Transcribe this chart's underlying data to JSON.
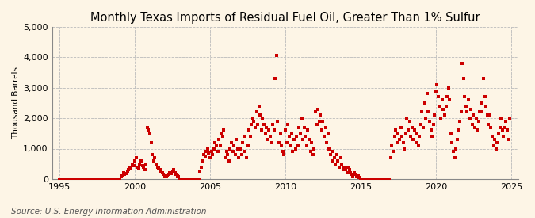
{
  "title": "Monthly Texas Imports of Residual Fuel Oil, Greater Than 1% Sulfur",
  "ylabel": "Thousand Barrels",
  "source": "Source: U.S. Energy Information Administration",
  "xlim": [
    1994.5,
    2025.5
  ],
  "ylim": [
    0,
    5000
  ],
  "yticks": [
    0,
    1000,
    2000,
    3000,
    4000,
    5000
  ],
  "xticks": [
    1995,
    2000,
    2005,
    2010,
    2015,
    2020,
    2025
  ],
  "marker_color": "#cc0000",
  "background_color": "#fdf5e6",
  "title_fontsize": 10.5,
  "label_fontsize": 7.5,
  "tick_fontsize": 8,
  "source_fontsize": 7.5,
  "data": {
    "1995-01": 5,
    "1995-02": 8,
    "1995-03": 4,
    "1995-04": 6,
    "1995-05": 5,
    "1995-06": 3,
    "1995-07": 4,
    "1995-08": 6,
    "1995-09": 5,
    "1995-10": 4,
    "1995-11": 5,
    "1995-12": 3,
    "1996-01": 5,
    "1996-02": 4,
    "1996-03": 6,
    "1996-04": 5,
    "1996-05": 4,
    "1996-06": 3,
    "1996-07": 5,
    "1996-08": 4,
    "1996-09": 6,
    "1996-10": 5,
    "1996-11": 4,
    "1996-12": 5,
    "1997-01": 4,
    "1997-02": 5,
    "1997-03": 6,
    "1997-04": 4,
    "1997-05": 5,
    "1997-06": 3,
    "1997-07": 4,
    "1997-08": 5,
    "1997-09": 4,
    "1997-10": 5,
    "1997-11": 4,
    "1997-12": 3,
    "1998-01": 5,
    "1998-02": 4,
    "1998-03": 5,
    "1998-04": 6,
    "1998-05": 4,
    "1998-06": 5,
    "1998-07": 3,
    "1998-08": 4,
    "1998-09": 5,
    "1998-10": 4,
    "1998-11": 5,
    "1998-12": 4,
    "1999-01": 5,
    "1999-02": 80,
    "1999-03": 120,
    "1999-04": 200,
    "1999-05": 150,
    "1999-06": 180,
    "1999-07": 250,
    "1999-08": 320,
    "1999-09": 400,
    "1999-10": 350,
    "1999-11": 500,
    "1999-12": 450,
    "2000-01": 600,
    "2000-02": 700,
    "2000-03": 400,
    "2000-04": 350,
    "2000-05": 500,
    "2000-06": 600,
    "2000-07": 450,
    "2000-08": 380,
    "2000-09": 300,
    "2000-10": 500,
    "2000-11": 1700,
    "2000-12": 1600,
    "2001-01": 1500,
    "2001-02": 1200,
    "2001-03": 800,
    "2001-04": 600,
    "2001-05": 700,
    "2001-06": 500,
    "2001-07": 400,
    "2001-08": 350,
    "2001-09": 300,
    "2001-10": 250,
    "2001-11": 200,
    "2001-12": 150,
    "2002-01": 100,
    "2002-02": 80,
    "2002-03": 120,
    "2002-04": 150,
    "2002-05": 200,
    "2002-06": 180,
    "2002-07": 250,
    "2002-08": 300,
    "2002-09": 200,
    "2002-10": 150,
    "2002-11": 100,
    "2002-12": 80,
    "2003-01": 5,
    "2003-02": 4,
    "2003-03": 5,
    "2003-04": 4,
    "2003-05": 5,
    "2003-06": 4,
    "2003-07": 5,
    "2003-08": 4,
    "2003-09": 5,
    "2003-10": 4,
    "2003-11": 5,
    "2003-12": 4,
    "2004-01": 5,
    "2004-02": 4,
    "2004-03": 5,
    "2004-04": 4,
    "2004-05": 250,
    "2004-06": 400,
    "2004-07": 600,
    "2004-08": 800,
    "2004-09": 750,
    "2004-10": 900,
    "2004-11": 1000,
    "2004-12": 850,
    "2005-01": 700,
    "2005-02": 900,
    "2005-03": 800,
    "2005-04": 1000,
    "2005-05": 1200,
    "2005-06": 1100,
    "2005-07": 900,
    "2005-08": 1300,
    "2005-09": 1100,
    "2005-10": 1500,
    "2005-11": 1400,
    "2005-12": 1600,
    "2006-01": 700,
    "2006-02": 900,
    "2006-03": 800,
    "2006-04": 600,
    "2006-05": 1000,
    "2006-06": 1200,
    "2006-07": 900,
    "2006-08": 1100,
    "2006-09": 800,
    "2006-10": 1300,
    "2006-11": 1000,
    "2006-12": 700,
    "2007-01": 1000,
    "2007-02": 800,
    "2007-03": 1200,
    "2007-04": 1400,
    "2007-05": 900,
    "2007-06": 700,
    "2007-07": 1100,
    "2007-08": 1600,
    "2007-09": 1400,
    "2007-10": 1800,
    "2007-11": 2000,
    "2007-12": 1900,
    "2008-01": 1700,
    "2008-02": 2200,
    "2008-03": 1800,
    "2008-04": 2400,
    "2008-05": 2100,
    "2008-06": 1600,
    "2008-07": 2000,
    "2008-08": 1800,
    "2008-09": 1500,
    "2008-10": 1700,
    "2008-11": 1300,
    "2008-12": 1600,
    "2009-01": 1400,
    "2009-02": 1200,
    "2009-03": 1800,
    "2009-04": 1600,
    "2009-05": 3300,
    "2009-06": 4050,
    "2009-07": 1900,
    "2009-08": 1200,
    "2009-09": 1500,
    "2009-10": 1100,
    "2009-11": 900,
    "2009-12": 800,
    "2010-01": 1600,
    "2010-02": 1200,
    "2010-03": 1800,
    "2010-04": 1400,
    "2010-05": 1100,
    "2010-06": 1500,
    "2010-07": 900,
    "2010-08": 1300,
    "2010-09": 1000,
    "2010-10": 1400,
    "2010-11": 1100,
    "2010-12": 1700,
    "2011-01": 1500,
    "2011-02": 2000,
    "2011-03": 1300,
    "2011-04": 1700,
    "2011-05": 1400,
    "2011-06": 1100,
    "2011-07": 1600,
    "2011-08": 1300,
    "2011-09": 900,
    "2011-10": 1200,
    "2011-11": 800,
    "2011-12": 1000,
    "2012-01": 2200,
    "2012-02": 1800,
    "2012-03": 2300,
    "2012-04": 1900,
    "2012-05": 2100,
    "2012-06": 1600,
    "2012-07": 1900,
    "2012-08": 1400,
    "2012-09": 1700,
    "2012-10": 1200,
    "2012-11": 1500,
    "2012-12": 1000,
    "2013-01": 800,
    "2013-02": 600,
    "2013-03": 900,
    "2013-04": 700,
    "2013-05": 500,
    "2013-06": 800,
    "2013-07": 600,
    "2013-08": 400,
    "2013-09": 700,
    "2013-10": 500,
    "2013-11": 300,
    "2013-12": 400,
    "2014-01": 300,
    "2014-02": 200,
    "2014-03": 400,
    "2014-04": 300,
    "2014-05": 200,
    "2014-06": 150,
    "2014-07": 100,
    "2014-08": 200,
    "2014-09": 150,
    "2014-10": 80,
    "2014-11": 100,
    "2014-12": 60,
    "2015-01": 5,
    "2015-02": 4,
    "2015-03": 5,
    "2015-04": 4,
    "2015-05": 5,
    "2015-06": 4,
    "2015-07": 5,
    "2015-08": 4,
    "2015-09": 5,
    "2015-10": 4,
    "2015-11": 5,
    "2015-12": 4,
    "2016-01": 5,
    "2016-02": 4,
    "2016-03": 5,
    "2016-04": 4,
    "2016-05": 5,
    "2016-06": 4,
    "2016-07": 5,
    "2016-08": 4,
    "2016-09": 5,
    "2016-10": 4,
    "2016-11": 5,
    "2016-12": 4,
    "2017-01": 700,
    "2017-02": 1100,
    "2017-03": 900,
    "2017-04": 1400,
    "2017-05": 1600,
    "2017-06": 1200,
    "2017-07": 1500,
    "2017-08": 1300,
    "2017-09": 1700,
    "2017-10": 1400,
    "2017-11": 1200,
    "2017-12": 1000,
    "2018-01": 1500,
    "2018-02": 2000,
    "2018-03": 1600,
    "2018-04": 1900,
    "2018-05": 1400,
    "2018-06": 1700,
    "2018-07": 1300,
    "2018-08": 1600,
    "2018-09": 1200,
    "2018-10": 1500,
    "2018-11": 1100,
    "2018-12": 1400,
    "2019-01": 1800,
    "2019-02": 2200,
    "2019-03": 1700,
    "2019-04": 2500,
    "2019-05": 2000,
    "2019-06": 2800,
    "2019-07": 2200,
    "2019-08": 1900,
    "2019-09": 1600,
    "2019-10": 1400,
    "2019-11": 1800,
    "2019-12": 2100,
    "2020-01": 2900,
    "2020-02": 3100,
    "2020-03": 2700,
    "2020-04": 2400,
    "2020-05": 2000,
    "2020-06": 2600,
    "2020-07": 2300,
    "2020-08": 2100,
    "2020-09": 2400,
    "2020-10": 2700,
    "2020-11": 3000,
    "2020-12": 2600,
    "2021-01": 1500,
    "2021-02": 1200,
    "2021-03": 900,
    "2021-04": 700,
    "2021-05": 1000,
    "2021-06": 1300,
    "2021-07": 1600,
    "2021-08": 1900,
    "2021-09": 2200,
    "2021-10": 3800,
    "2021-11": 3300,
    "2021-12": 2700,
    "2022-01": 2400,
    "2022-02": 2200,
    "2022-03": 2600,
    "2022-04": 2000,
    "2022-05": 2300,
    "2022-06": 1800,
    "2022-07": 2100,
    "2022-08": 1700,
    "2022-09": 2000,
    "2022-10": 1600,
    "2022-11": 1900,
    "2022-12": 2200,
    "2023-01": 2500,
    "2023-02": 2200,
    "2023-03": 3300,
    "2023-04": 2700,
    "2023-05": 2400,
    "2023-06": 2100,
    "2023-07": 1800,
    "2023-08": 2100,
    "2023-09": 1700,
    "2023-10": 1400,
    "2023-11": 1100,
    "2023-12": 1300,
    "2024-01": 1000,
    "2024-02": 1200,
    "2024-03": 1500,
    "2024-04": 1700,
    "2024-05": 2000,
    "2024-06": 1600,
    "2024-07": 1400,
    "2024-08": 1700,
    "2024-09": 1900,
    "2024-10": 1600,
    "2024-11": 1300,
    "2024-12": 2000
  }
}
